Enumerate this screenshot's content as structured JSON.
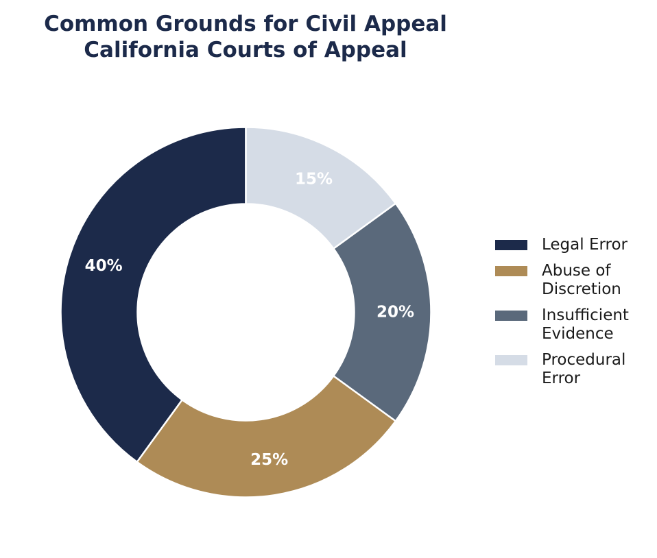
{
  "chart_data": {
    "type": "pie",
    "variant": "donut",
    "title_lines": [
      "Common Grounds for Civil Appeal",
      "California Courts of Appeal"
    ],
    "slices": [
      {
        "label_lines": [
          "Legal Error"
        ],
        "value": 40,
        "value_label": "40%",
        "color": "#1c2a4a"
      },
      {
        "label_lines": [
          "Abuse of",
          "Discretion"
        ],
        "value": 25,
        "value_label": "25%",
        "color": "#ae8b56"
      },
      {
        "label_lines": [
          "Insufficient",
          "Evidence"
        ],
        "value": 20,
        "value_label": "20%",
        "color": "#5a697b"
      },
      {
        "label_lines": [
          "Procedural",
          "Error"
        ],
        "value": 15,
        "value_label": "15%",
        "color": "#d5dce6"
      }
    ],
    "start_angle": "12 o'clock",
    "direction": "counterclockwise",
    "legend_position": "right"
  }
}
